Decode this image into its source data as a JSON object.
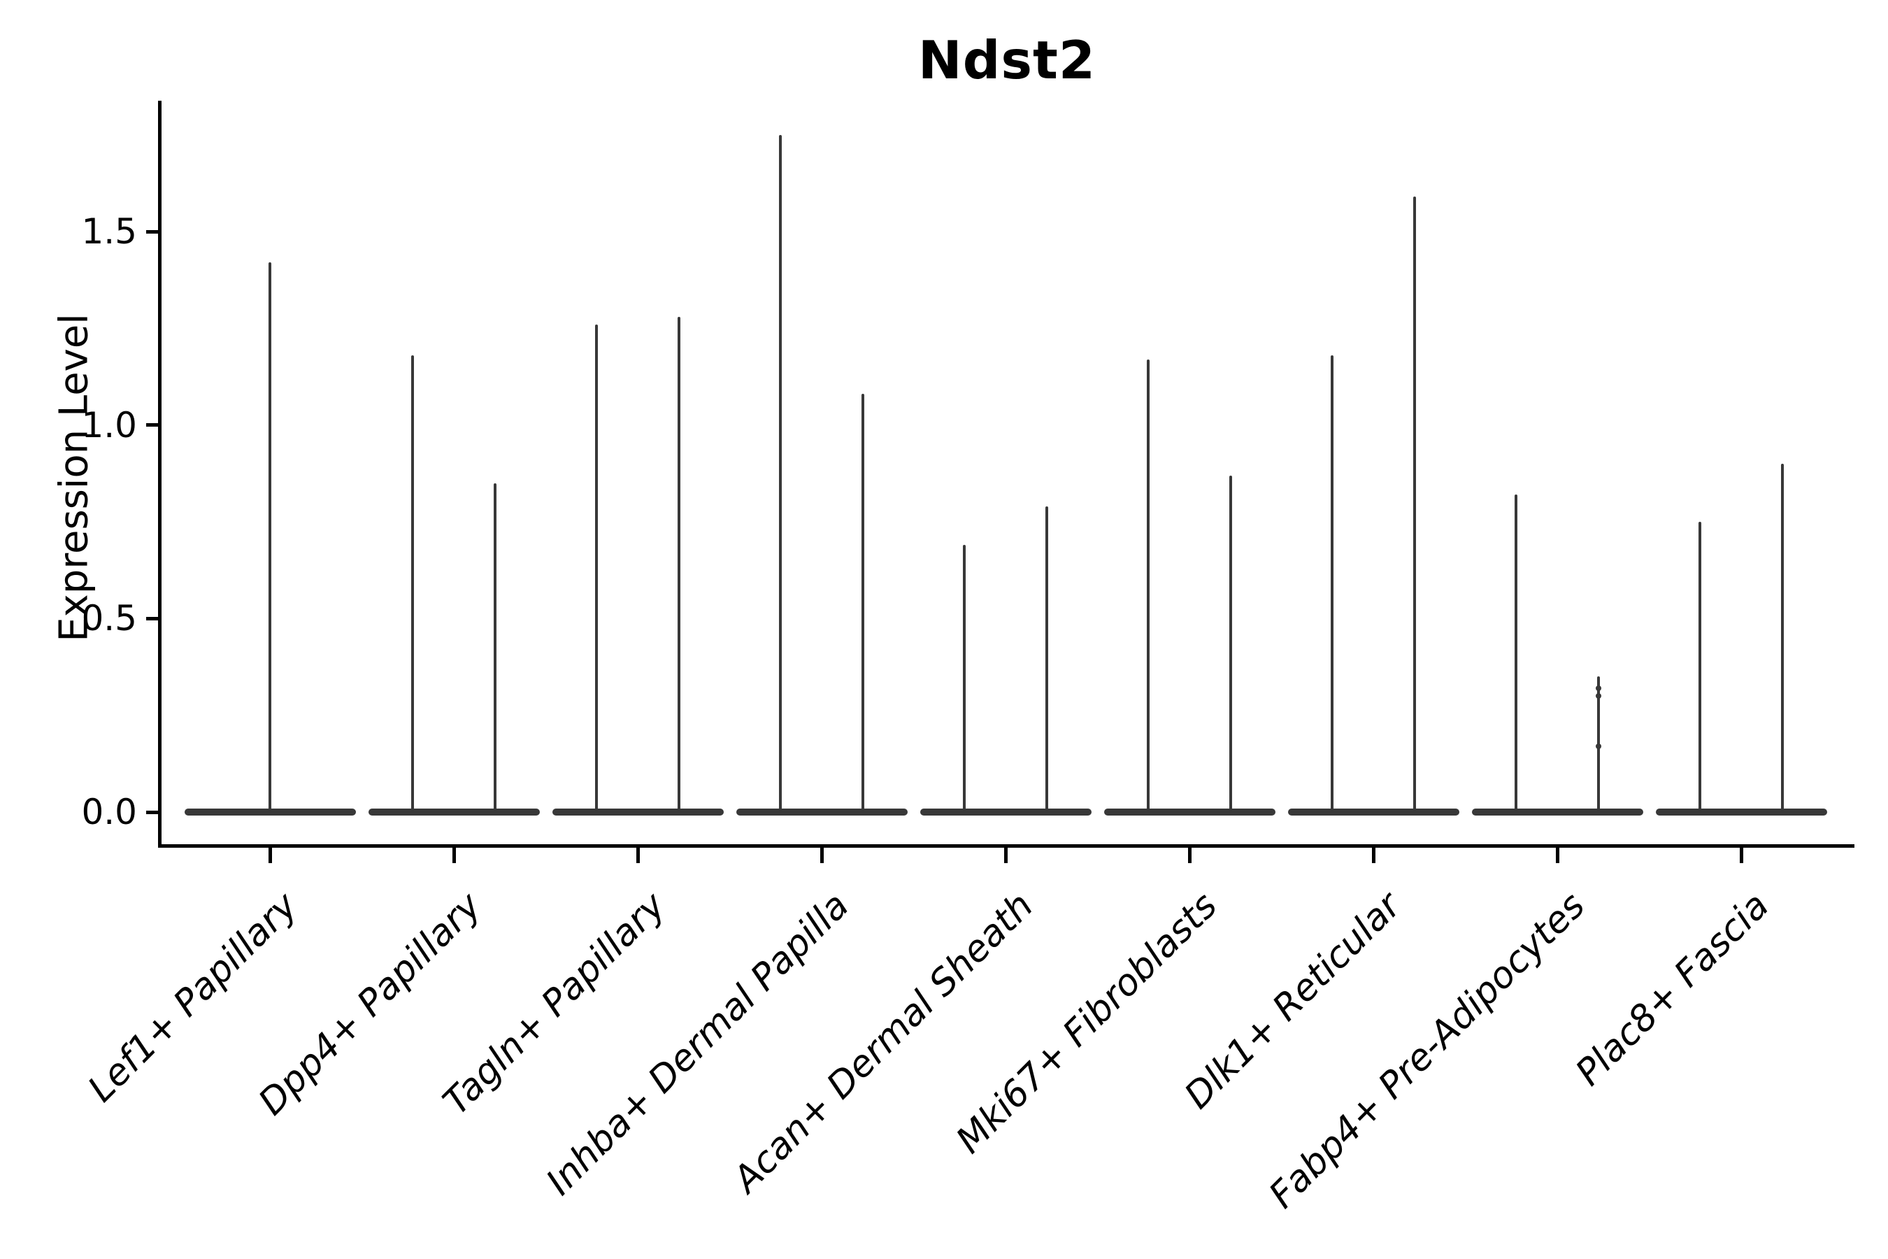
{
  "title": "Ndst2",
  "y_axis": {
    "label": "Expression Level",
    "tick_labels": [
      "0.0",
      "0.5",
      "1.0",
      "1.5"
    ]
  },
  "colors": {
    "violin": "#383838",
    "axis": "#000000",
    "text": "#000000",
    "background": "#ffffff"
  },
  "chart_data": {
    "type": "violin",
    "title": "Ndst2",
    "xlabel": "",
    "ylabel": "Expression Level",
    "ylim": [
      -0.09,
      1.84
    ],
    "yticks": [
      0.0,
      0.5,
      1.0,
      1.5
    ],
    "grid": false,
    "legend": "none",
    "description": "Single-cell expression violin plot; nearly all density is a flat pancake at 0 for every group, with hair-thin spikes reaching each violin's maximum expression value.",
    "categories": [
      "Lef1+ Papillary",
      "Dpp4+ Papillary",
      "Tagln+ Papillary",
      "Inhba+ Dermal Papilla",
      "Acan+ Dermal Sheath",
      "Mki67+ Fibroblasts",
      "Dlk1+ Reticular",
      "Fabp4+ Pre-Adipocytes",
      "Plac8+ Fascia"
    ],
    "violins": [
      {
        "category": "Lef1+ Papillary",
        "spikes": [
          {
            "pos": "center",
            "max": 1.42
          }
        ]
      },
      {
        "category": "Dpp4+ Papillary",
        "spikes": [
          {
            "pos": "left",
            "max": 1.18
          },
          {
            "pos": "right",
            "max": 0.85
          }
        ]
      },
      {
        "category": "Tagln+ Papillary",
        "spikes": [
          {
            "pos": "left",
            "max": 1.26
          },
          {
            "pos": "right",
            "max": 1.28
          }
        ]
      },
      {
        "category": "Inhba+ Dermal Papilla",
        "spikes": [
          {
            "pos": "left",
            "max": 1.75
          },
          {
            "pos": "right",
            "max": 1.08
          }
        ]
      },
      {
        "category": "Acan+ Dermal Sheath",
        "spikes": [
          {
            "pos": "left",
            "max": 0.69
          },
          {
            "pos": "right",
            "max": 0.79
          }
        ]
      },
      {
        "category": "Mki67+ Fibroblasts",
        "spikes": [
          {
            "pos": "left",
            "max": 1.17
          },
          {
            "pos": "right",
            "max": 0.87
          }
        ]
      },
      {
        "category": "Dlk1+ Reticular",
        "spikes": [
          {
            "pos": "left",
            "max": 1.18
          },
          {
            "pos": "right",
            "max": 1.59
          }
        ]
      },
      {
        "category": "Fabp4+ Pre-Adipocytes",
        "spikes": [
          {
            "pos": "left",
            "max": 0.82
          },
          {
            "pos": "right",
            "max": 0.35,
            "dots": [
              0.32,
              0.3,
              0.17
            ]
          }
        ]
      },
      {
        "category": "Plac8+ Fascia",
        "spikes": [
          {
            "pos": "left",
            "max": 0.75
          },
          {
            "pos": "right",
            "max": 0.9
          }
        ]
      }
    ]
  }
}
